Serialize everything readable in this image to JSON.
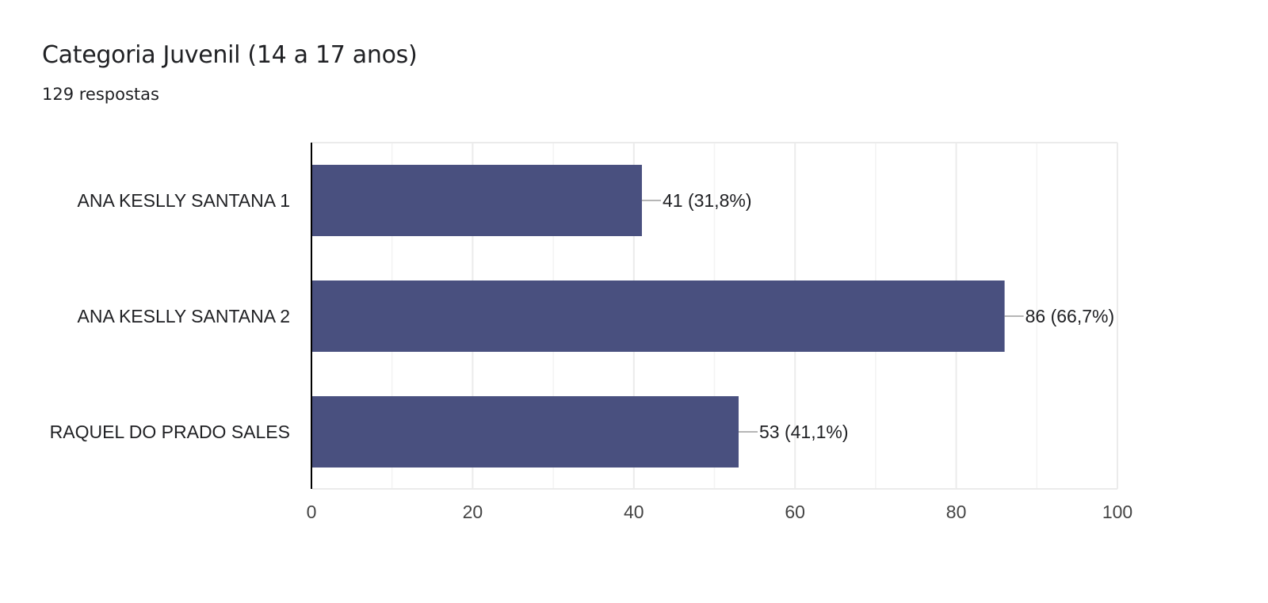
{
  "header": {
    "title": "Categoria Juvenil (14 a 17 anos)",
    "responses": "129 respostas"
  },
  "colors": {
    "bar": "#49507f",
    "grid": "#ebebeb",
    "axis": "#000000",
    "leader": "#9e9e9e",
    "text": "#202124",
    "tick_text": "#444444"
  },
  "chart_data": {
    "type": "bar",
    "orientation": "horizontal",
    "title": "Categoria Juvenil (14 a 17 anos)",
    "subtitle": "129 respostas",
    "categories": [
      "ANA KESLLY SANTANA 1",
      "ANA KESLLY SANTANA 2",
      "RAQUEL DO PRADO SALES"
    ],
    "values": [
      41,
      86,
      53
    ],
    "data_labels": [
      "41 (31,8%)",
      "86 (66,7%)",
      "53 (41,1%)"
    ],
    "xlim": [
      0,
      100
    ],
    "xticks": [
      0,
      20,
      40,
      60,
      80,
      100
    ],
    "xtick_labels": [
      "0",
      "20",
      "40",
      "60",
      "80",
      "100"
    ],
    "minor_gridlines": [
      10,
      30,
      50,
      70,
      90
    ],
    "grid": true,
    "legend": "none",
    "xlabel": "",
    "ylabel": ""
  }
}
